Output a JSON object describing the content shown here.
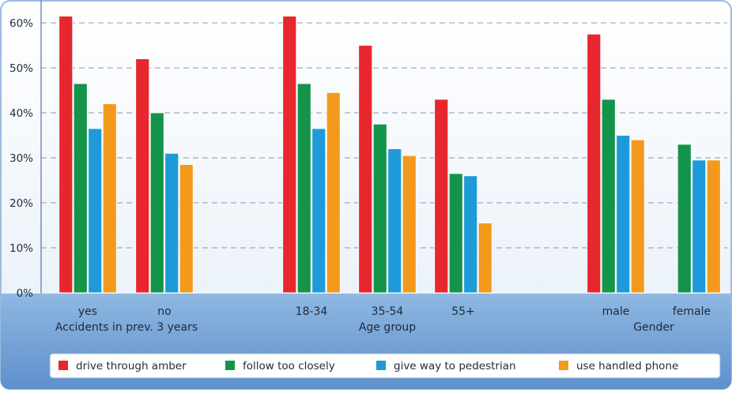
{
  "chart_data": {
    "type": "bar",
    "yaxis": {
      "ticks": [
        "0%",
        "10%",
        "20%",
        "30%",
        "40%",
        "50%",
        "60%"
      ],
      "ylim": [
        0,
        65
      ],
      "unit": "%"
    },
    "grid": true,
    "legend_position": "bottom",
    "series": [
      {
        "name": "drive through amber",
        "color": "#e8262e"
      },
      {
        "name": "follow too closely",
        "color": "#14944a"
      },
      {
        "name": "give way to pedestrian",
        "color": "#1f9ad8"
      },
      {
        "name": "use handled phone",
        "color": "#f39a1c"
      }
    ],
    "groups": [
      {
        "label": "Accidents in prev. 3 years",
        "categories": [
          {
            "label": "yes",
            "values": [
              61.5,
              46.5,
              36.5,
              42.0
            ]
          },
          {
            "label": "no",
            "values": [
              52.0,
              40.0,
              31.0,
              28.5
            ]
          }
        ]
      },
      {
        "label": "Age group",
        "categories": [
          {
            "label": "18-34",
            "values": [
              61.5,
              46.5,
              36.5,
              44.5
            ]
          },
          {
            "label": "35-54",
            "values": [
              55.0,
              37.5,
              32.0,
              30.5
            ]
          },
          {
            "label": "55+",
            "values": [
              43.0,
              26.5,
              26.0,
              15.5
            ]
          }
        ]
      },
      {
        "label": "Gender",
        "categories": [
          {
            "label": "male",
            "values": [
              57.5,
              43.0,
              35.0,
              34.0
            ]
          },
          {
            "label": "female",
            "values": [
              null,
              33.0,
              29.5,
              29.5
            ]
          }
        ]
      }
    ]
  }
}
